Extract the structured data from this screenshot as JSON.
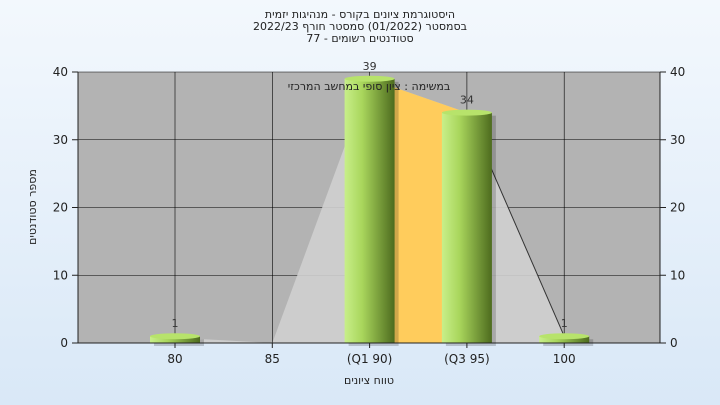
{
  "chart_data": {
    "type": "bar",
    "title": "היסטוגרמת ציונים בקורס - מנהיגות יזמית",
    "subtitle_lines": [
      "בסמסטר  (01/2022)  סמסטר חורף 2022/23",
      "סטודנטים רשומים - 77"
    ],
    "annotation": "במשימה : ציון סופי במחשב המרכזי",
    "xlabel": "טווח ציונים",
    "ylabel": "מספר סטודנטים",
    "categories": [
      "80",
      "85",
      "(Q1 90)",
      "(Q3 95)",
      "100"
    ],
    "values": [
      1,
      0,
      39,
      34,
      1
    ],
    "data_labels": [
      "1",
      "",
      "39",
      "34",
      "1"
    ],
    "ylim": [
      0,
      40
    ],
    "yticks": [
      0,
      10,
      20,
      30,
      40
    ],
    "grid": true,
    "secondary_y_axis": true,
    "colors": {
      "plot_bg": "#b3b3b3",
      "bar_light": "#c8ef8a",
      "bar_dark": "#4d6b1e",
      "distribution_fill": "#cfcfcf",
      "iqr_fill": "#ffcc5c"
    }
  }
}
